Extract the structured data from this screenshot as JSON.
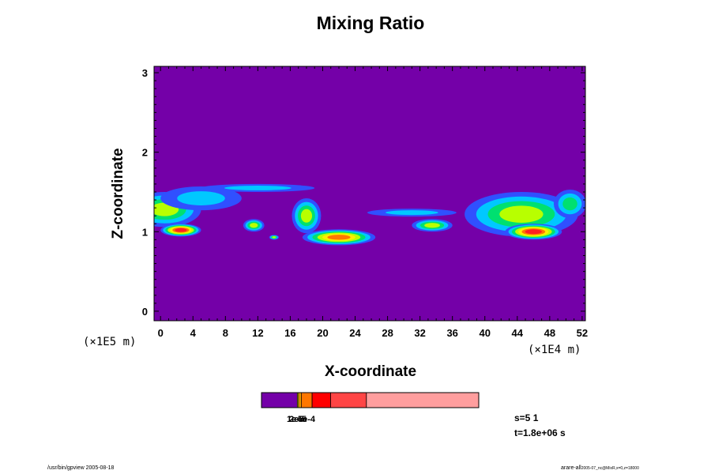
{
  "chart_data": {
    "type": "heatmap",
    "title": "Mixing Ratio",
    "xlabel": "X-coordinate",
    "ylabel": "Z-coordinate",
    "x_multiplier": "(×1E4 m)",
    "y_multiplier": "(×1E5 m)",
    "xlim": [
      -0.8,
      52.4
    ],
    "ylim": [
      -0.12,
      3.08
    ],
    "x_ticks": [
      0,
      4,
      8,
      12,
      16,
      20,
      24,
      28,
      32,
      36,
      40,
      44,
      48,
      52
    ],
    "y_ticks": [
      0,
      1,
      2,
      3
    ],
    "background_color": "#7400a8",
    "colorbar": {
      "segments": [
        {
          "color": "#7400a8",
          "fraction": 0.165
        },
        {
          "color": "#ffee00",
          "fraction": 0.006
        },
        {
          "color": "#ffaa00",
          "fraction": 0.012
        },
        {
          "color": "#ff7700",
          "fraction": 0.05
        },
        {
          "color": "#ff0000",
          "fraction": 0.085
        },
        {
          "color": "#ff4545",
          "fraction": 0.165
        },
        {
          "color": "#ff9e9e",
          "fraction": 0.517
        }
      ],
      "labels": [
        "1e-5",
        "2e-5",
        "5e-4"
      ]
    },
    "cloud_regions": [
      {
        "x": 0.5,
        "z": 1.28,
        "rx": 4.5,
        "rz": 0.22,
        "level": 3
      },
      {
        "x": 2.5,
        "z": 1.02,
        "rx": 2.5,
        "rz": 0.08,
        "level": 6
      },
      {
        "x": 5.0,
        "z": 1.42,
        "rx": 5.0,
        "rz": 0.15,
        "level": 1
      },
      {
        "x": 12.0,
        "z": 1.55,
        "rx": 7.0,
        "rz": 0.05,
        "level": 1
      },
      {
        "x": 11.5,
        "z": 1.08,
        "rx": 1.3,
        "rz": 0.08,
        "level": 3
      },
      {
        "x": 18.0,
        "z": 1.2,
        "rx": 1.8,
        "rz": 0.22,
        "level": 3
      },
      {
        "x": 22.0,
        "z": 0.93,
        "rx": 4.5,
        "rz": 0.1,
        "level": 5
      },
      {
        "x": 14.0,
        "z": 0.93,
        "rx": 0.6,
        "rz": 0.03,
        "level": 3
      },
      {
        "x": 31.0,
        "z": 1.24,
        "rx": 5.5,
        "rz": 0.05,
        "level": 1
      },
      {
        "x": 33.5,
        "z": 1.08,
        "rx": 2.5,
        "rz": 0.08,
        "level": 3
      },
      {
        "x": 44.5,
        "z": 1.22,
        "rx": 7.0,
        "rz": 0.28,
        "level": 3
      },
      {
        "x": 46.0,
        "z": 1.0,
        "rx": 3.5,
        "rz": 0.1,
        "level": 6
      },
      {
        "x": 50.5,
        "z": 1.35,
        "rx": 2.0,
        "rz": 0.18,
        "level": 2
      }
    ],
    "cloud_colors": [
      "#3050ff",
      "#00c8ff",
      "#00e070",
      "#b8ff00",
      "#ffee00",
      "#ff7700",
      "#ff2020"
    ]
  },
  "stats": {
    "s_line": "s=5 1",
    "t_line": "t=1.8e+06 s"
  },
  "footer": {
    "left": "/usr/bin/gpview 2005-08-18",
    "right": "arare-all",
    "right_sub": "2005-07_nc@MixR,x=0,z=18000"
  }
}
